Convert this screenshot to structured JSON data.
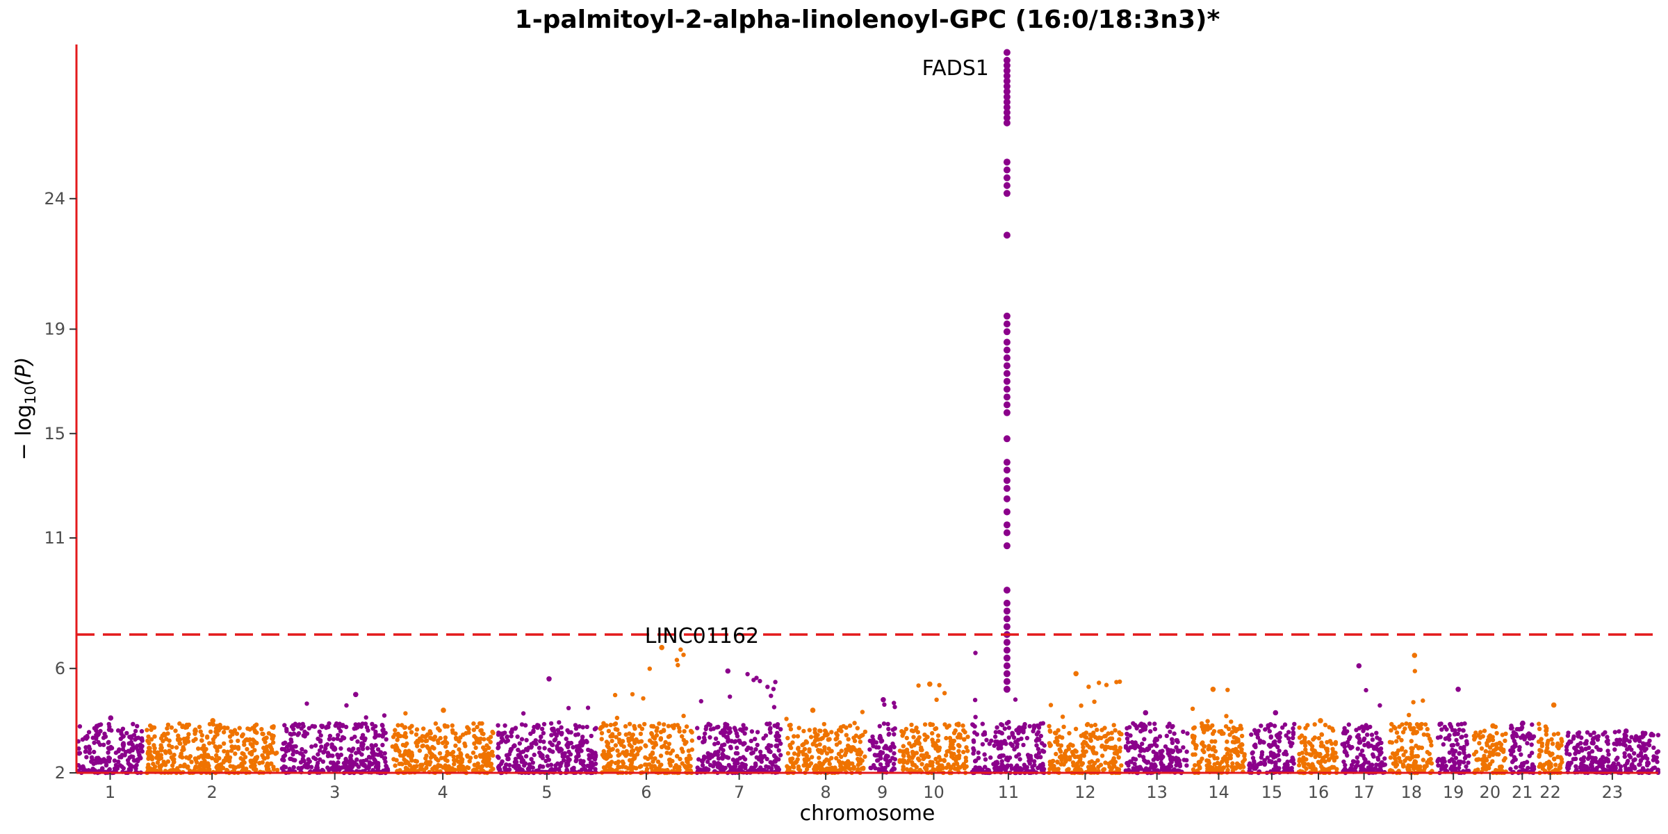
{
  "chart_data": {
    "type": "scatter",
    "title": "1-palmitoyl-2-alpha-linolenoyl-GPC (16:0/18:3n3)*",
    "xlabel": "chromosome",
    "ylabel_prefix": "− log",
    "ylabel_sub": "10",
    "ylabel_suffix": "(P)",
    "ylim": [
      2,
      29.8
    ],
    "yticks": [
      2,
      6,
      11,
      15,
      19,
      24
    ],
    "significance_threshold": 7.3,
    "threshold_color": "#e31a1c",
    "axis_color": "#e31a1c",
    "colors": [
      "#8b008b",
      "#ef7300"
    ],
    "chromosomes": [
      {
        "label": "1",
        "max": 4.1
      },
      {
        "label": "2",
        "max": 4.0
      },
      {
        "label": "3",
        "max": 5.0
      },
      {
        "label": "4",
        "max": 4.4
      },
      {
        "label": "5",
        "max": 5.6
      },
      {
        "label": "6",
        "max": 6.8
      },
      {
        "label": "7",
        "max": 5.9
      },
      {
        "label": "8",
        "max": 4.4
      },
      {
        "label": "9",
        "max": 4.8
      },
      {
        "label": "10",
        "max": 5.4
      },
      {
        "label": "11",
        "max": 29.6
      },
      {
        "label": "12",
        "max": 5.8
      },
      {
        "label": "13",
        "max": 4.3
      },
      {
        "label": "14",
        "max": 5.2
      },
      {
        "label": "15",
        "max": 4.3
      },
      {
        "label": "16",
        "max": 4.0
      },
      {
        "label": "17",
        "max": 6.1
      },
      {
        "label": "18",
        "max": 6.5
      },
      {
        "label": "19",
        "max": 5.2
      },
      {
        "label": "20",
        "max": 3.8
      },
      {
        "label": "21",
        "max": 3.9
      },
      {
        "label": "22",
        "max": 4.6
      },
      {
        "label": "23",
        "max": 3.6
      }
    ],
    "peak_points": [
      29.6,
      29.3,
      29.1,
      28.9,
      28.7,
      28.5,
      28.3,
      28.1,
      27.9,
      27.7,
      27.5,
      27.3,
      27.1,
      26.9,
      25.4,
      25.1,
      24.8,
      24.5,
      24.2,
      22.6,
      19.5,
      19.2,
      18.9,
      18.5,
      18.2,
      17.9,
      17.6,
      17.3,
      17.0,
      16.7,
      16.4,
      16.1,
      15.8,
      14.8,
      13.9,
      13.6,
      13.2,
      12.9,
      12.5,
      12.0,
      11.5,
      11.2,
      10.7,
      9.0,
      8.5,
      8.2,
      7.9,
      7.6,
      7.3,
      7.0,
      6.7,
      6.4,
      6.1,
      5.8,
      5.5,
      5.2
    ],
    "annotations": [
      {
        "text": "FADS1",
        "chromosome": "11",
        "y": 29.0
      },
      {
        "text": "LINC01162",
        "chromosome": "6",
        "y": 7.25
      }
    ]
  }
}
